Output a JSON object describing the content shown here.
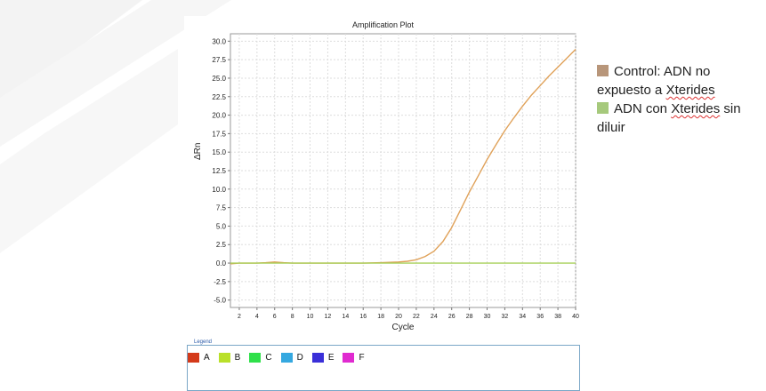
{
  "colors": {
    "control": "#e0a25a",
    "xterides": "#a8d05a",
    "side_control_square": "#b8967a",
    "side_xterides_square": "#a6c97c"
  },
  "side_legend": {
    "control_prefix": "Control: ADN no expuesto a ",
    "control_underlined": "Xterides",
    "xterides_prefix": "ADN con ",
    "xterides_underlined": "Xterides",
    "xterides_suffix": " sin diluir"
  },
  "plate_legend": {
    "title": "Legend",
    "items": [
      {
        "label": "A",
        "color": "#d43a1a"
      },
      {
        "label": "B",
        "color": "#b9e02a"
      },
      {
        "label": "C",
        "color": "#2fe04a"
      },
      {
        "label": "D",
        "color": "#35a8e0"
      },
      {
        "label": "E",
        "color": "#3a2fd8"
      },
      {
        "label": "F",
        "color": "#e02ad0"
      }
    ]
  },
  "chart_data": {
    "type": "line",
    "title": "Amplification Plot",
    "xlabel": "Cycle",
    "ylabel": "ΔRn",
    "xlim": [
      1,
      40
    ],
    "ylim": [
      -6,
      31
    ],
    "xticks": [
      2,
      4,
      6,
      8,
      10,
      12,
      14,
      16,
      18,
      20,
      22,
      24,
      26,
      28,
      30,
      32,
      34,
      36,
      38,
      40
    ],
    "yticks": [
      -5.0,
      -2.5,
      0.0,
      2.5,
      5.0,
      7.5,
      10.0,
      12.5,
      15.0,
      17.5,
      20.0,
      22.5,
      25.0,
      27.5,
      30.0
    ],
    "ytick_labels": [
      "-5.0",
      "-2.5",
      "0.0",
      "2.5",
      "5.0",
      "7.5",
      "10.0",
      "12.5",
      "15.0",
      "17.5",
      "20.0",
      "22.5",
      "25.0",
      "27.5",
      "30.0"
    ],
    "grid": true,
    "series": [
      {
        "color_key": "control",
        "x": [
          1,
          2,
          3,
          4,
          5,
          6,
          7,
          8,
          10,
          12,
          14,
          16,
          18,
          19,
          20,
          21,
          22,
          23,
          24,
          25,
          26,
          27,
          28,
          29,
          30,
          31,
          32,
          33,
          34,
          35,
          36,
          37,
          38,
          39,
          40
        ],
        "y": [
          -0.1,
          0.0,
          0.0,
          0.0,
          0.05,
          0.15,
          0.05,
          0.0,
          0.0,
          0.0,
          0.0,
          0.0,
          0.05,
          0.1,
          0.15,
          0.25,
          0.45,
          0.9,
          1.6,
          2.9,
          4.8,
          7.2,
          9.6,
          11.8,
          14.0,
          16.0,
          17.9,
          19.6,
          21.2,
          22.7,
          24.0,
          25.3,
          26.5,
          27.7,
          28.9
        ]
      },
      {
        "color_key": "xterides",
        "x": [
          1,
          5,
          10,
          15,
          20,
          25,
          30,
          35,
          40
        ],
        "y": [
          0.0,
          0.0,
          0.0,
          0.0,
          0.0,
          0.0,
          0.0,
          0.0,
          0.0
        ]
      }
    ]
  }
}
